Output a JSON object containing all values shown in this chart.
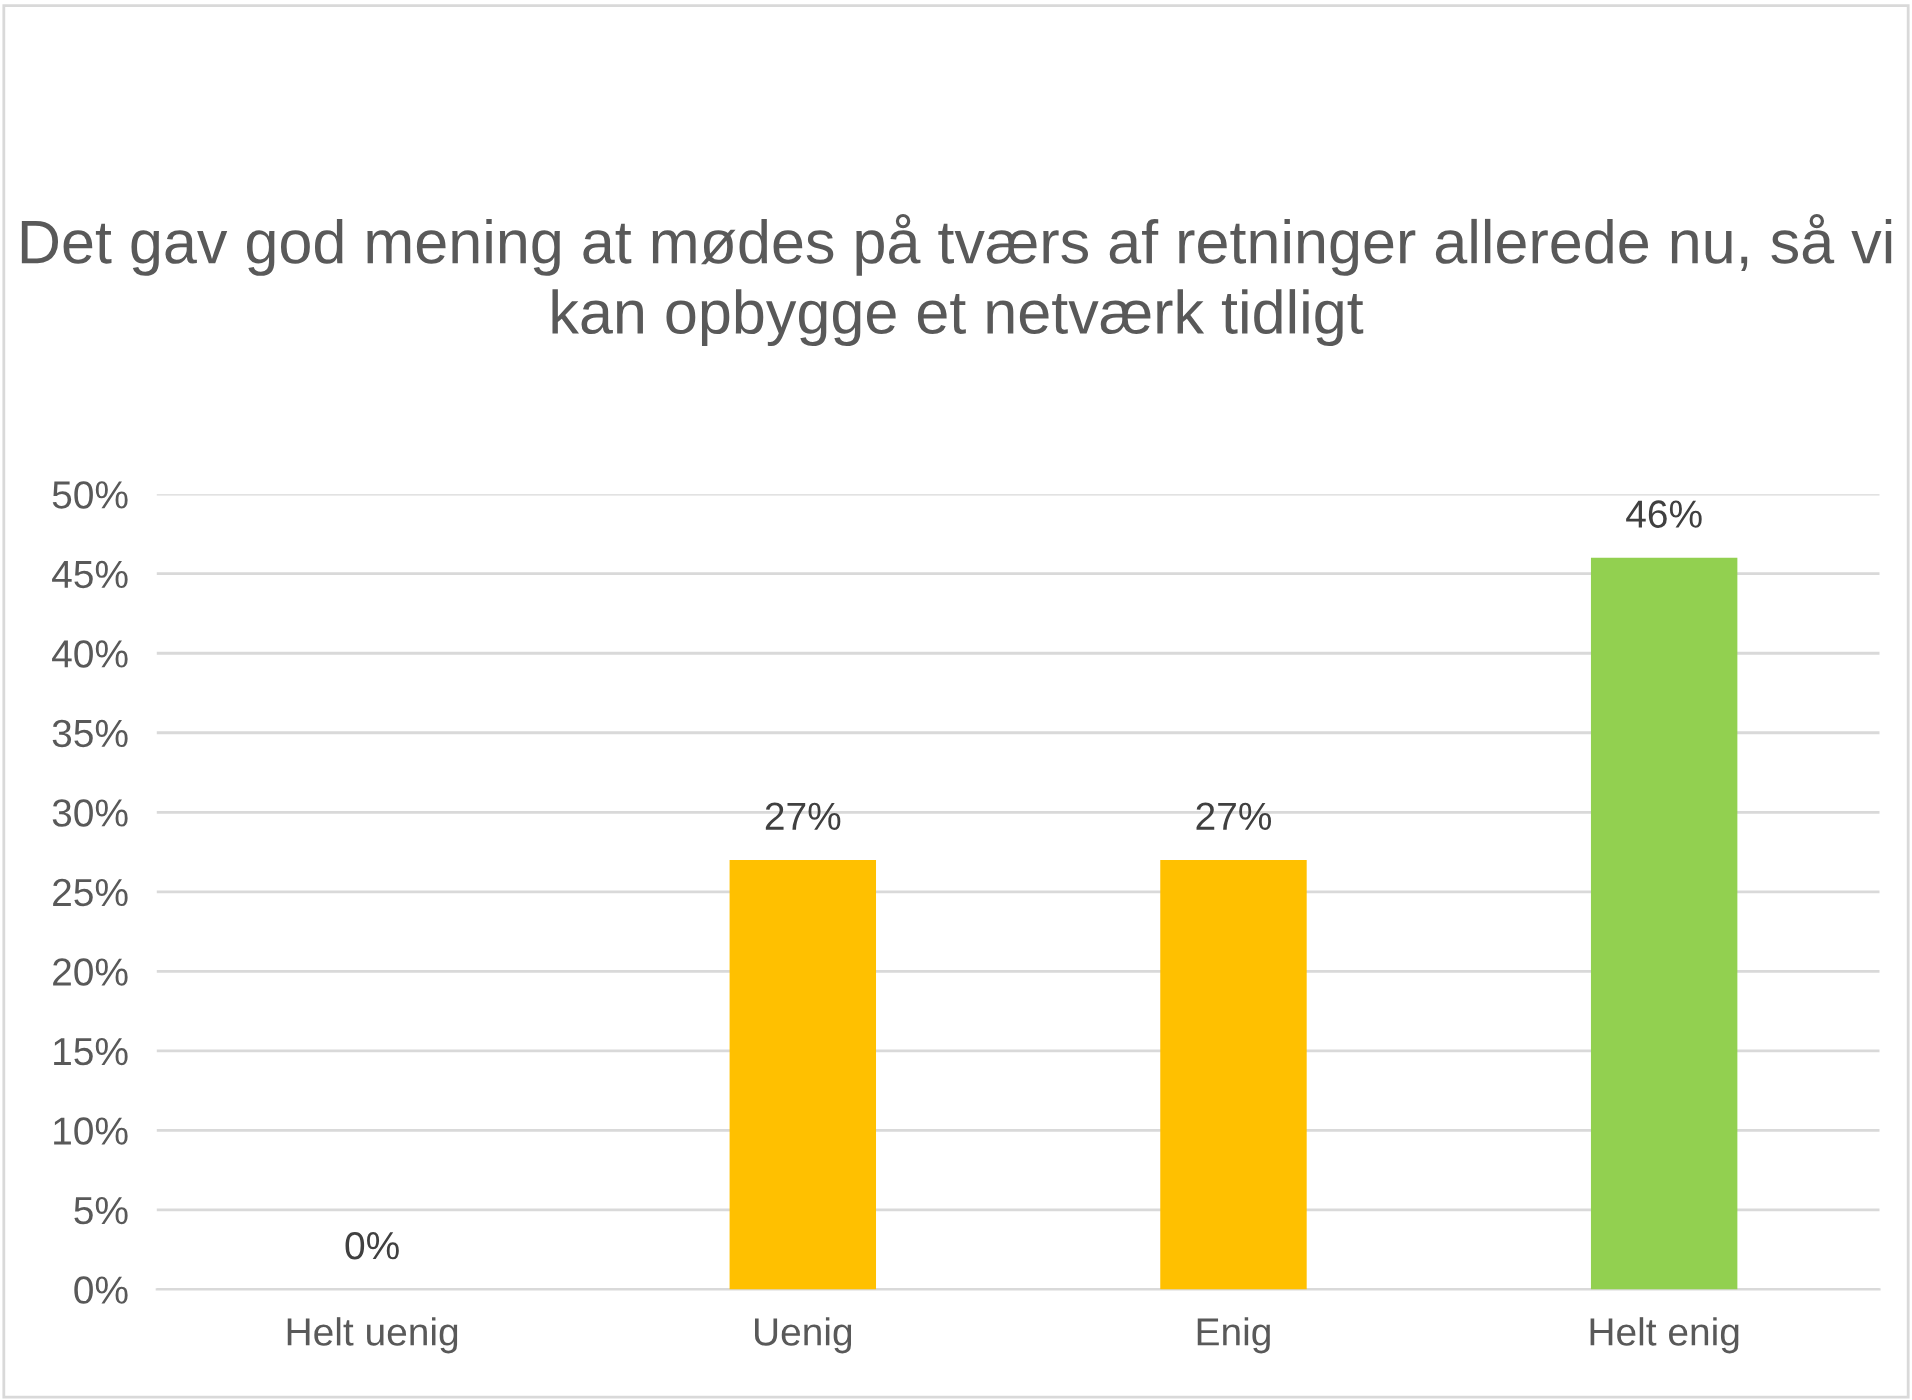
{
  "chart_data": {
    "type": "bar",
    "title": "Det gav god mening at mødes på tværs af retninger allerede nu, så vi kan opbygge et netværk tidligt",
    "categories": [
      "Helt uenig",
      "Uenig",
      "Enig",
      "Helt enig"
    ],
    "values": [
      0,
      27,
      27,
      46
    ],
    "colors": [
      "#ffc000",
      "#ffc000",
      "#ffc000",
      "#92d050"
    ],
    "value_labels": [
      "0%",
      "27%",
      "27%",
      "46%"
    ],
    "ylim": [
      0,
      50
    ],
    "yticks": [
      {
        "value": 0,
        "label": "0%"
      },
      {
        "value": 5,
        "label": "5%"
      },
      {
        "value": 10,
        "label": "10%"
      },
      {
        "value": 15,
        "label": "15%"
      },
      {
        "value": 20,
        "label": "20%"
      },
      {
        "value": 25,
        "label": "25%"
      },
      {
        "value": 30,
        "label": "30%"
      },
      {
        "value": 35,
        "label": "35%"
      },
      {
        "value": 40,
        "label": "40%"
      },
      {
        "value": 45,
        "label": "45%"
      },
      {
        "value": 50,
        "label": "50%"
      }
    ],
    "grid": "y",
    "legend": false
  }
}
